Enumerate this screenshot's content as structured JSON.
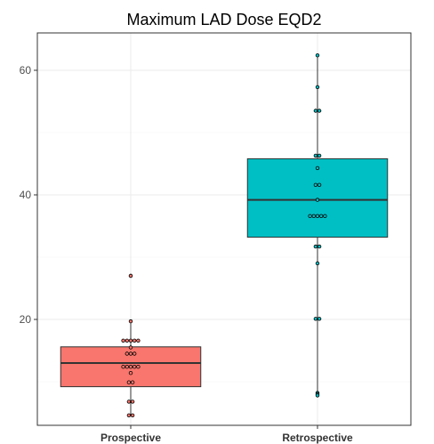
{
  "chart_data": {
    "type": "box",
    "title": "Maximum LAD Dose EQD2",
    "xlabel": "",
    "ylabel": "",
    "categories": [
      "Prospective",
      "Retrospective"
    ],
    "ylim": [
      3.0,
      66.0
    ],
    "y_ticks": [
      20,
      40,
      60
    ],
    "grid": true,
    "series": [
      {
        "category": "Prospective",
        "fill": "#F8766D",
        "box": {
          "min": 4.5,
          "q1": 9.2,
          "median": 13.0,
          "q3": 15.6,
          "max": 19.7
        },
        "outliers": [
          27.0
        ],
        "points": [
          27.0,
          19.7,
          16.6,
          16.6,
          16.6,
          16.6,
          16.6,
          15.5,
          14.5,
          14.5,
          14.5,
          12.4,
          12.4,
          12.4,
          12.4,
          12.4,
          11.4,
          9.9,
          9.9,
          6.8,
          6.8,
          4.6,
          4.6
        ]
      },
      {
        "category": "Retrospective",
        "fill": "#00BFC4",
        "box": {
          "min": 7.8,
          "q1": 33.2,
          "median": 39.2,
          "q3": 45.8,
          "max": 62.4
        },
        "outliers": [],
        "points": [
          62.4,
          57.3,
          53.5,
          53.5,
          46.3,
          46.3,
          44.3,
          41.6,
          41.6,
          39.2,
          36.6,
          36.6,
          36.6,
          36.6,
          36.6,
          31.7,
          31.7,
          29.0,
          20.1,
          20.1,
          8.2,
          8.0,
          7.8
        ]
      }
    ]
  }
}
